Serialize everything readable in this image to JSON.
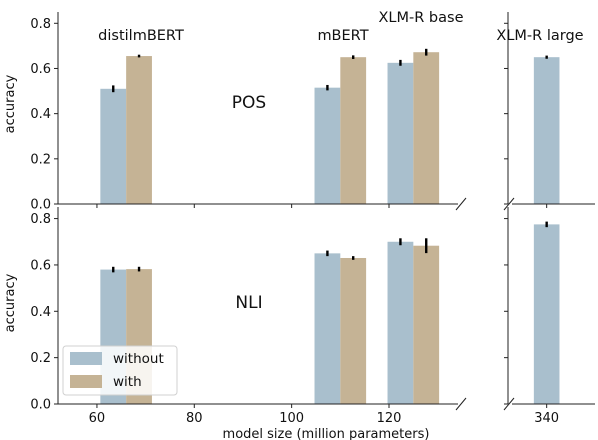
{
  "chart_data": {
    "type": "bar",
    "xlabel": "model size (million parameters)",
    "ylabel": "accuracy",
    "x_ticks_left": [
      60,
      80,
      100,
      120
    ],
    "x_ticks_right": [
      340
    ],
    "xlim_left": [
      52,
      135
    ],
    "xlim_right": [
      332,
      350
    ],
    "ylim": [
      0,
      0.85
    ],
    "y_ticks": [
      "0.0",
      "0.2",
      "0.4",
      "0.6",
      "0.8"
    ],
    "legend": {
      "position": "lower-left",
      "entries": [
        {
          "label": "without",
          "color": "#a9bfcd"
        },
        {
          "label": "with",
          "color": "#c5b395"
        }
      ]
    },
    "model_labels": [
      "distilmBERT",
      "mBERT",
      "XLM-R base",
      "XLM-R large"
    ],
    "panels": [
      {
        "task": "POS",
        "groups": [
          {
            "model": "distilmBERT",
            "size": 66,
            "without": 0.51,
            "without_err": 0.015,
            "with": 0.655,
            "with_err": 0.006
          },
          {
            "model": "mBERT",
            "size": 110,
            "without": 0.515,
            "without_err": 0.012,
            "with": 0.65,
            "with_err": 0.008
          },
          {
            "model": "XLM-R base",
            "size": 125,
            "without": 0.625,
            "without_err": 0.013,
            "with": 0.672,
            "with_err": 0.015
          },
          {
            "model": "XLM-R large",
            "size": 340,
            "without": 0.65,
            "without_err": 0.007
          }
        ]
      },
      {
        "task": "NLI",
        "groups": [
          {
            "model": "distilmBERT",
            "size": 66,
            "without": 0.58,
            "without_err": 0.012,
            "with": 0.582,
            "with_err": 0.01
          },
          {
            "model": "mBERT",
            "size": 110,
            "without": 0.65,
            "without_err": 0.012,
            "with": 0.63,
            "with_err": 0.008
          },
          {
            "model": "XLM-R base",
            "size": 125,
            "without": 0.7,
            "without_err": 0.015,
            "with": 0.683,
            "with_err": 0.032
          },
          {
            "model": "XLM-R large",
            "size": 340,
            "without": 0.775,
            "without_err": 0.012
          }
        ]
      }
    ]
  }
}
